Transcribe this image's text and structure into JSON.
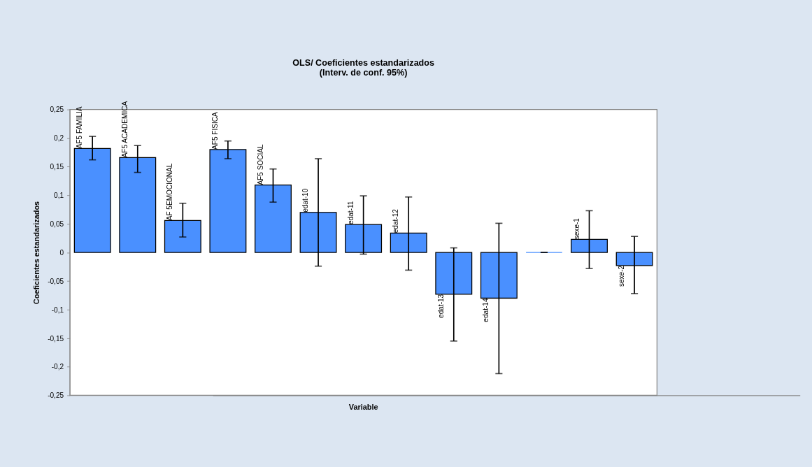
{
  "chart_data": {
    "type": "bar",
    "title": [
      "OLS/ Coeficientes estandarizados",
      "(Interv. de conf. 95%)"
    ],
    "xlabel": "Variable",
    "ylabel": "Coeficientes estandarizados",
    "categories": [
      "AF5 FAMILIA",
      "AF5 ACADEMICA",
      "AF 5EMOCIONAL",
      "AF5 FISICA",
      "AF5 SOCIAL",
      "edat-10",
      "edat-11",
      "edat-12",
      "edat-13",
      "edat-14",
      null,
      "sexe-1",
      "sexe-2"
    ],
    "values": [
      0.182,
      0.166,
      0.056,
      0.18,
      0.118,
      0.07,
      0.049,
      0.034,
      -0.073,
      -0.08,
      0,
      0.023,
      -0.023
    ],
    "errors": [
      [
        0.162,
        0.203
      ],
      [
        0.14,
        0.187
      ],
      [
        0.027,
        0.086
      ],
      [
        0.164,
        0.195
      ],
      [
        0.088,
        0.146
      ],
      [
        -0.024,
        0.164
      ],
      [
        -0.003,
        0.099
      ],
      [
        -0.031,
        0.097
      ],
      [
        -0.155,
        0.008
      ],
      [
        -0.212,
        0.051
      ],
      0,
      [
        -0.028,
        0.073
      ],
      [
        -0.072,
        0.028
      ]
    ],
    "color": "#4a90ff",
    "ylim": [
      -0.25,
      0.25
    ],
    "yticks": [
      {
        "value": -0.25,
        "label": "-0,25"
      },
      {
        "value": -0.2,
        "label": "-0,2"
      },
      {
        "value": -0.15,
        "label": "-0,15"
      },
      {
        "value": -0.1,
        "label": "-0,1"
      },
      {
        "value": -0.05,
        "label": "-0,05"
      },
      {
        "value": 0,
        "label": "0"
      },
      {
        "value": 0.05,
        "label": "0,05"
      },
      {
        "value": 0.1,
        "label": "0,1"
      },
      {
        "value": 0.15,
        "label": "0,15"
      },
      {
        "value": 0.2,
        "label": "0,2"
      },
      {
        "value": 0.25,
        "label": "0,25"
      }
    ],
    "tick_labels": "y",
    "grid": false
  }
}
